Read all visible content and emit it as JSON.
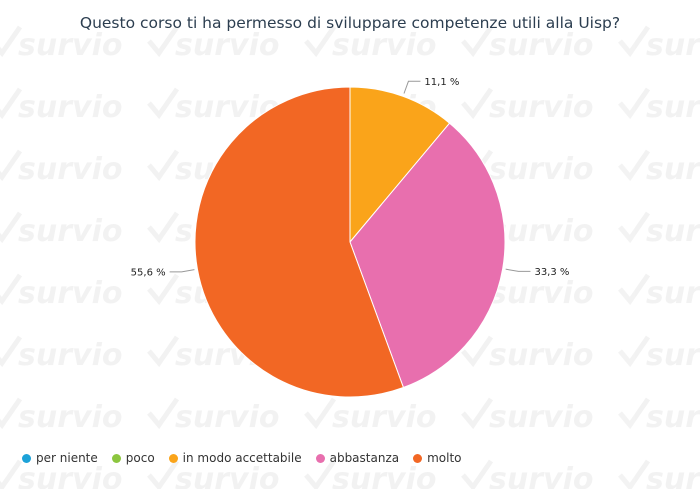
{
  "watermark": {
    "text": "survio"
  },
  "chart_data": {
    "type": "pie",
    "title": "Questo corso ti ha permesso di sviluppare competenze utili alla Uisp?",
    "legend_position": "bottom-left",
    "slices": [
      {
        "name": "per niente",
        "value": 0,
        "label": "",
        "color": "#1da2d8"
      },
      {
        "name": "poco",
        "value": 0,
        "label": "",
        "color": "#8cc63f"
      },
      {
        "name": "in modo accettabile",
        "value": 11.1,
        "label": "11,1 %",
        "color": "#faa41a"
      },
      {
        "name": "abbastanza",
        "value": 33.3,
        "label": "33,3 %",
        "color": "#e86fae"
      },
      {
        "name": "molto",
        "value": 55.6,
        "label": "55,6 %",
        "color": "#f26724"
      }
    ]
  }
}
